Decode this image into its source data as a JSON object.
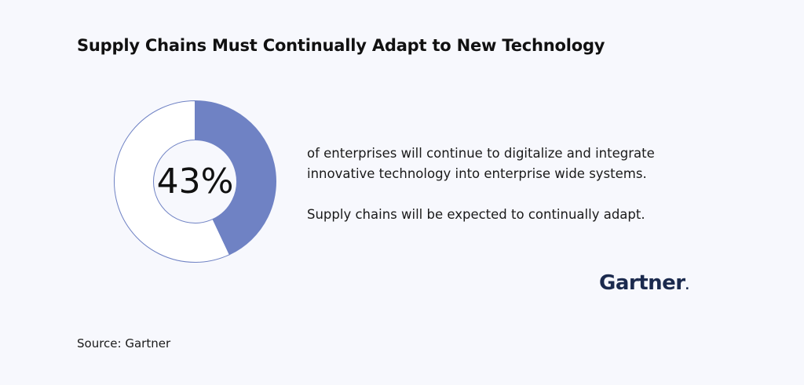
{
  "title": "Supply Chains Must Continually Adapt to New Technology",
  "chart_data": {
    "type": "pie",
    "values": [
      43,
      57
    ],
    "center_label": "43%",
    "colors": {
      "filled": "#6f82c4",
      "remainder": "#ffffff",
      "stroke": "#6f82c4"
    }
  },
  "description": {
    "line1": "of enterprises will continue to digitalize and integrate innovative technology into enterprise wide systems.",
    "line2": "Supply chains will be expected to continually adapt."
  },
  "logo": {
    "text": "Gartner",
    "dot": "."
  },
  "source": "Source: Gartner"
}
